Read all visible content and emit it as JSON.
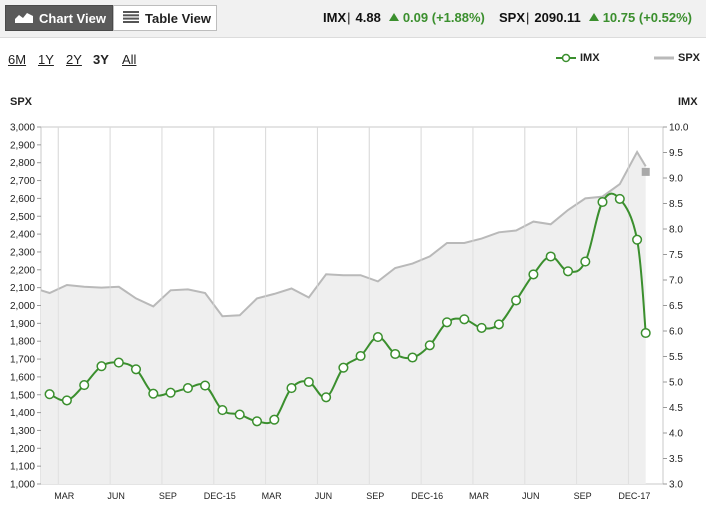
{
  "toolbar": {
    "chart_view_label": "Chart View",
    "table_view_label": "Table View",
    "chart_view_icon": "area-chart-icon",
    "table_view_icon": "table-list-icon"
  },
  "quotes": [
    {
      "symbol": "IMX",
      "separator": "|",
      "value": "4.88",
      "change": "0.09",
      "pct": "(+1.88%)",
      "direction": "up"
    },
    {
      "symbol": "SPX",
      "separator": "|",
      "value": "2090.11",
      "change": "10.75",
      "pct": "(+0.52%)",
      "direction": "up"
    }
  ],
  "ranges": [
    {
      "label": "6M",
      "active": false
    },
    {
      "label": "1Y",
      "active": false
    },
    {
      "label": "2Y",
      "active": false
    },
    {
      "label": "3Y",
      "active": true
    },
    {
      "label": "All",
      "active": false
    }
  ],
  "colors": {
    "imx": "#3b8f2e",
    "spx_line": "#b9b9b9",
    "spx_fill": "#efefef",
    "up": "#3b8f2e"
  },
  "chart_data": {
    "type": "line",
    "legend": [
      "IMX",
      "SPX"
    ],
    "legend_position": "top-right",
    "left_axis_title": "SPX",
    "right_axis_title": "IMX",
    "x_ticks": [
      "MAR",
      "JUN",
      "SEP",
      "DEC-15",
      "MAR",
      "JUN",
      "SEP",
      "DEC-16",
      "MAR",
      "JUN",
      "SEP",
      "DEC-17"
    ],
    "x_tick_positions": [
      0.5,
      3.5,
      6.5,
      9.5,
      12.5,
      15.5,
      18.5,
      21.5,
      24.5,
      27.5,
      30.5,
      33.5
    ],
    "x_range": [
      -0.5,
      35.5
    ],
    "ylim_left": [
      1000,
      3000
    ],
    "ylim_right": [
      3.0,
      10.0
    ],
    "yticks_left": [
      "3,000",
      "2,900",
      "2,800",
      "2,700",
      "2,600",
      "2,500",
      "2,400",
      "2,300",
      "2,200",
      "2,100",
      "2,000",
      "1,900",
      "1,800",
      "1,700",
      "1,600",
      "1,500",
      "1,400",
      "1,300",
      "1,200",
      "1,100",
      "1,000"
    ],
    "yticks_right": [
      "10.0",
      "9.5",
      "9.0",
      "8.5",
      "8.0",
      "7.5",
      "7.0",
      "6.5",
      "6.0",
      "5.5",
      "5.0",
      "4.5",
      "4.0",
      "3.5",
      "3.0"
    ],
    "grid_vertical": true,
    "series": [
      {
        "name": "SPX",
        "axis": "left",
        "style": "area",
        "x": [
          -0.5,
          0,
          1,
          2,
          3,
          4,
          5,
          6,
          7,
          8,
          9,
          10,
          11,
          12,
          13,
          14,
          15,
          16,
          17,
          18,
          19,
          20,
          21,
          22,
          23,
          24,
          25,
          26,
          27,
          28,
          29,
          30,
          31,
          32,
          33,
          34,
          34.5
        ],
        "y": [
          2085,
          2070,
          2115,
          2105,
          2100,
          2105,
          2040,
          1995,
          2085,
          2090,
          2070,
          1940,
          1945,
          2040,
          2065,
          2095,
          2045,
          2175,
          2170,
          2170,
          2135,
          2210,
          2235,
          2275,
          2350,
          2350,
          2375,
          2410,
          2420,
          2470,
          2455,
          2535,
          2600,
          2610,
          2680,
          2860,
          2780
        ]
      },
      {
        "name": "IMX",
        "axis": "right",
        "style": "line-markers",
        "x": [
          0,
          1,
          2,
          3,
          4,
          5,
          6,
          7,
          8,
          9,
          10,
          11,
          12,
          13,
          14,
          15,
          16,
          17,
          18,
          19,
          20,
          21,
          22,
          23,
          24,
          25,
          26,
          27,
          28,
          29,
          30,
          31,
          32,
          33,
          34,
          34.5
        ],
        "y": [
          4.76,
          4.64,
          4.94,
          5.31,
          5.38,
          5.25,
          4.77,
          4.79,
          4.88,
          4.93,
          4.45,
          4.36,
          4.23,
          4.26,
          4.88,
          5.0,
          4.7,
          5.28,
          5.51,
          5.88,
          5.55,
          5.48,
          5.72,
          6.17,
          6.23,
          6.06,
          6.13,
          6.6,
          7.11,
          7.46,
          7.17,
          7.36,
          8.53,
          8.59,
          7.79,
          5.96
        ]
      }
    ],
    "end_marker_value_right": 9.12
  }
}
